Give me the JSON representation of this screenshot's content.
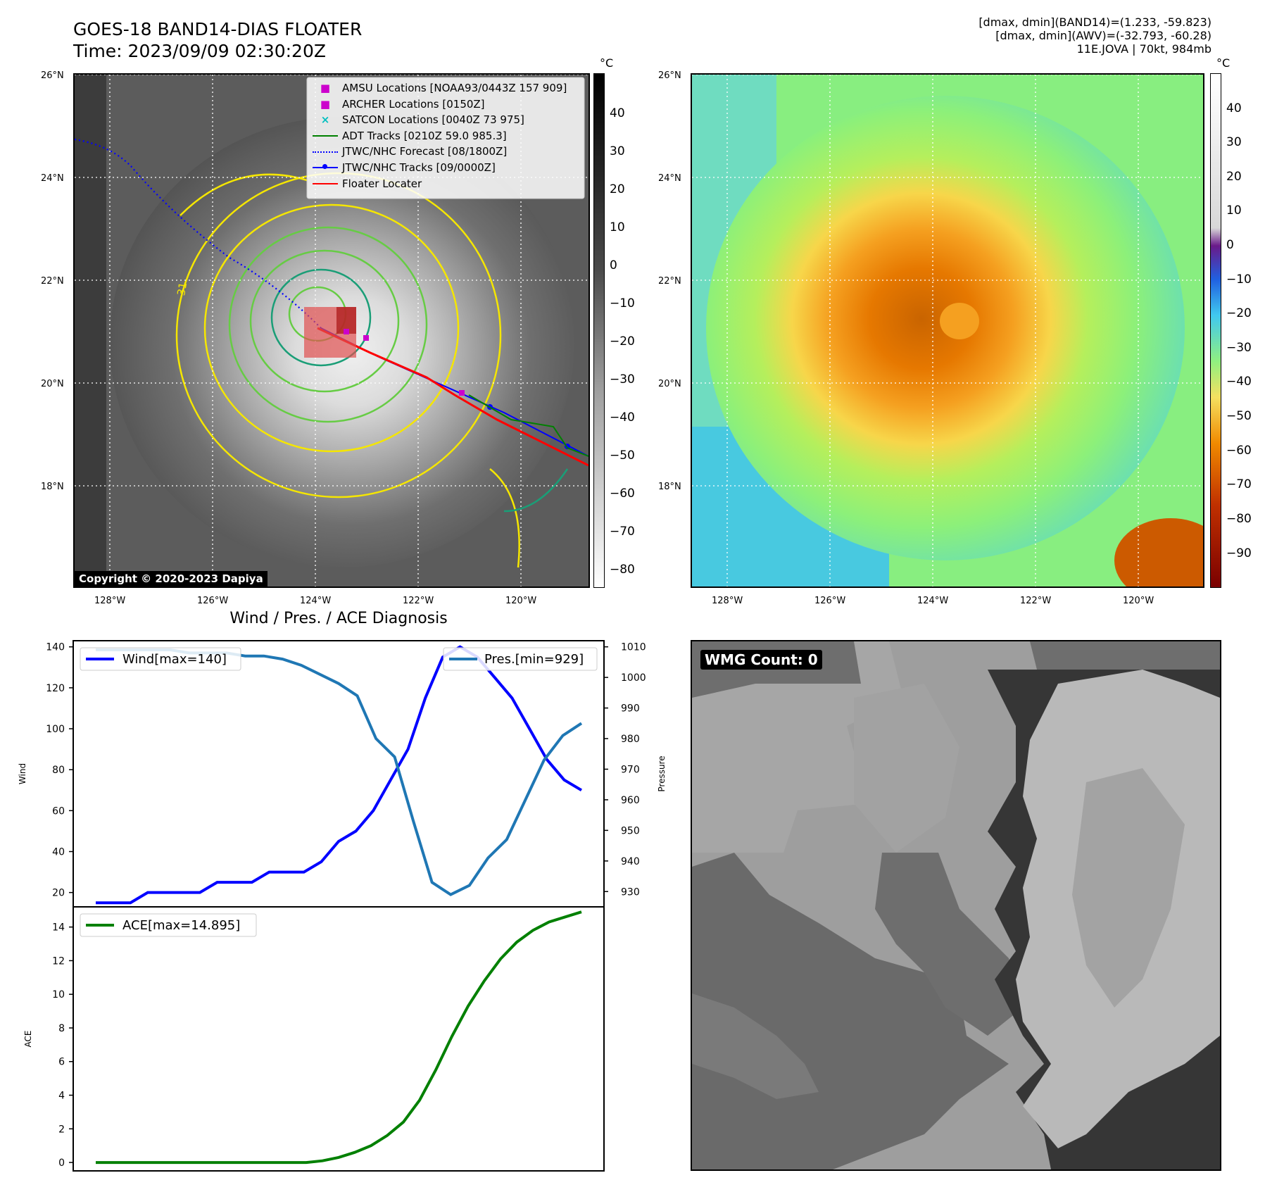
{
  "header": {
    "title_line1": "GOES-18 BAND14-DIAS FLOATER",
    "title_line2": "Time: 2023/09/09 02:30:20Z",
    "stats_line1": "[dmax, dmin](BAND14)=(1.233, -59.823)",
    "stats_line2": "[dmax, dmin](AWV)=(-32.793, -60.28)",
    "stats_line3": "11E.JOVA | 70kt, 984mb"
  },
  "maps": {
    "lat_labels": [
      "26°N",
      "24°N",
      "22°N",
      "20°N",
      "18°N"
    ],
    "lon_labels": [
      "128°W",
      "126°W",
      "124°W",
      "122°W",
      "120°W"
    ],
    "legend": [
      {
        "label": "AMSU Locations [NOAA93/0443Z 157 909]",
        "kind": "square",
        "color": "#cc00cc"
      },
      {
        "label": "ARCHER Locations [0150Z]",
        "kind": "square",
        "color": "#cc00cc"
      },
      {
        "label": "SATCON Locations [0040Z 73 975]",
        "kind": "x",
        "color": "#00bfbf"
      },
      {
        "label": "ADT Tracks [0210Z 59.0 985.3]",
        "kind": "line",
        "color": "#008000"
      },
      {
        "label": "JTWC/NHC Forecast [08/1800Z]",
        "kind": "dotted",
        "color": "#0000ff"
      },
      {
        "label": "JTWC/NHC Tracks [09/0000Z]",
        "kind": "dotline",
        "color": "#0000ff"
      },
      {
        "label": "Floater Locater",
        "kind": "line",
        "color": "#ff0000"
      }
    ],
    "copyright": "Copyright © 2020-2023 Dapiya",
    "colorbar_unit": "°C",
    "colorbar1_ticks": [
      "40",
      "30",
      "20",
      "10",
      "0",
      "−10",
      "−20",
      "−30",
      "−40",
      "−50",
      "−60",
      "−70",
      "−80"
    ],
    "colorbar2_ticks": [
      "40",
      "30",
      "20",
      "10",
      "0",
      "−10",
      "−20",
      "−30",
      "−40",
      "−50",
      "−60",
      "−70",
      "−80",
      "−90"
    ],
    "contour_label": "-31",
    "colors": {
      "contour_yellow": "#f5e600",
      "contour_green": "#66cc44",
      "contour_teal": "#1a9e77"
    }
  },
  "wmg": {
    "label": "WMG Count: 0"
  },
  "chart_data": [
    {
      "type": "line",
      "title": "Wind / Pres. / ACE Diagnosis",
      "ylabel": "Wind",
      "ylabel_right": "Pressure",
      "ylim": [
        13,
        143
      ],
      "ylim_right": [
        925,
        1012
      ],
      "yticks": [
        20,
        40,
        60,
        80,
        100,
        120,
        140
      ],
      "yticks_right": [
        930,
        940,
        950,
        960,
        970,
        980,
        990,
        1000,
        1010
      ],
      "series": [
        {
          "name": "Wind[max=140]",
          "color": "#0000ff",
          "axis": "left",
          "values": [
            15,
            15,
            15,
            20,
            20,
            20,
            20,
            25,
            25,
            25,
            30,
            30,
            30,
            35,
            45,
            50,
            60,
            75,
            90,
            115,
            135,
            140,
            135,
            125,
            115,
            100,
            85,
            75,
            70
          ]
        },
        {
          "name": "Pres.[min=929]",
          "color": "#1f77b4",
          "axis": "right",
          "values": [
            1009,
            1009,
            1009,
            1009,
            1009,
            1008,
            1008,
            1008,
            1007,
            1007,
            1006,
            1004,
            1001,
            998,
            994,
            980,
            974,
            953,
            933,
            929,
            932,
            941,
            947,
            960,
            973,
            981,
            985
          ]
        }
      ]
    },
    {
      "type": "line",
      "ylabel": "ACE",
      "ylim": [
        -0.5,
        15.2
      ],
      "yticks": [
        0,
        2,
        4,
        6,
        8,
        10,
        12,
        14
      ],
      "series": [
        {
          "name": "ACE[max=14.895]",
          "color": "#008000",
          "values": [
            0,
            0,
            0,
            0,
            0,
            0,
            0,
            0,
            0,
            0,
            0,
            0,
            0,
            0,
            0.1,
            0.3,
            0.6,
            1.0,
            1.6,
            2.4,
            3.7,
            5.5,
            7.5,
            9.3,
            10.8,
            12.1,
            13.1,
            13.8,
            14.3,
            14.6,
            14.9
          ]
        }
      ]
    }
  ]
}
